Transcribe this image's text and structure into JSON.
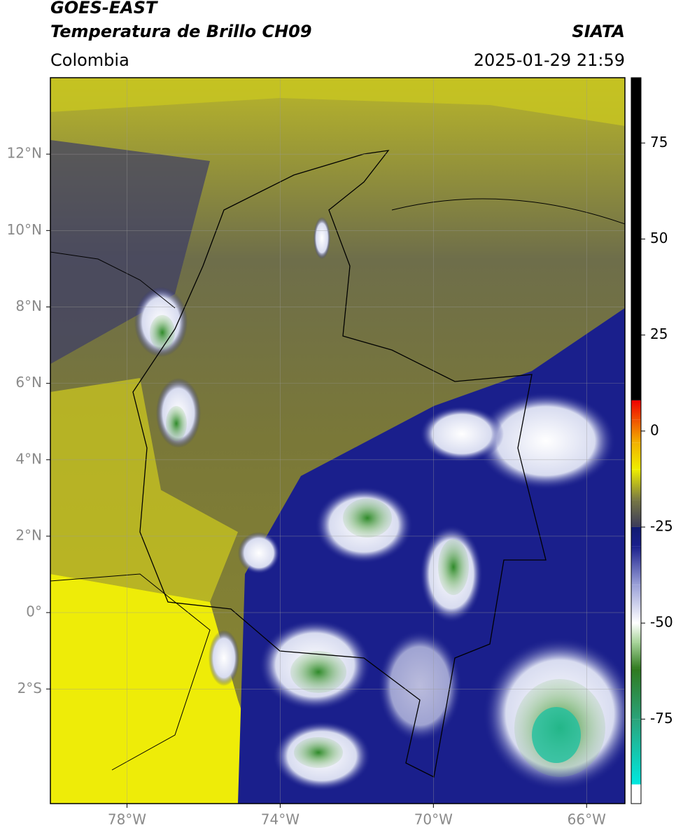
{
  "header": {
    "title": "GOES-EAST",
    "subtitle": "Temperatura de Brillo CH09",
    "source": "SIATA",
    "region": "Colombia",
    "timestamp": "2025-01-29 21:59"
  },
  "map": {
    "xlim": [
      -80,
      -65
    ],
    "ylim": [
      -5,
      14
    ],
    "xticks": [
      {
        "value": -78,
        "label": "78°W"
      },
      {
        "value": -74,
        "label": "74°W"
      },
      {
        "value": -70,
        "label": "70°W"
      },
      {
        "value": -66,
        "label": "66°W"
      }
    ],
    "yticks": [
      {
        "value": 12,
        "label": "12°N"
      },
      {
        "value": 10,
        "label": "10°N"
      },
      {
        "value": 8,
        "label": "8°N"
      },
      {
        "value": 6,
        "label": "6°N"
      },
      {
        "value": 4,
        "label": "4°N"
      },
      {
        "value": 2,
        "label": "2°N"
      },
      {
        "value": 0,
        "label": "0°"
      },
      {
        "value": -2,
        "label": "2°S"
      }
    ],
    "grid": true
  },
  "colorbar": {
    "clim": [
      -97,
      92
    ],
    "ticks": [
      75,
      50,
      25,
      0,
      -25,
      -50,
      -75
    ],
    "colormap": [
      {
        "value": -97,
        "color": "#ffffff"
      },
      {
        "value": -92,
        "color": "#ffffff"
      },
      {
        "value": -92,
        "color": "#00e8e0"
      },
      {
        "value": -75,
        "color": "#2aa37a"
      },
      {
        "value": -62,
        "color": "#2f7a1f"
      },
      {
        "value": -55,
        "color": "#a8d49a"
      },
      {
        "value": -50,
        "color": "#ffffff"
      },
      {
        "value": -40,
        "color": "#9aa0d8"
      },
      {
        "value": -30,
        "color": "#1a1f8c"
      },
      {
        "value": -25,
        "color": "#101a70"
      },
      {
        "value": -25,
        "color": "#3a3a5a"
      },
      {
        "value": -18,
        "color": "#777744"
      },
      {
        "value": -10,
        "color": "#eeee00"
      },
      {
        "value": -3,
        "color": "#f2b000"
      },
      {
        "value": 3,
        "color": "#f05000"
      },
      {
        "value": 8,
        "color": "#f00000"
      },
      {
        "value": 8,
        "color": "#000000"
      },
      {
        "value": 92,
        "color": "#000000"
      }
    ]
  }
}
